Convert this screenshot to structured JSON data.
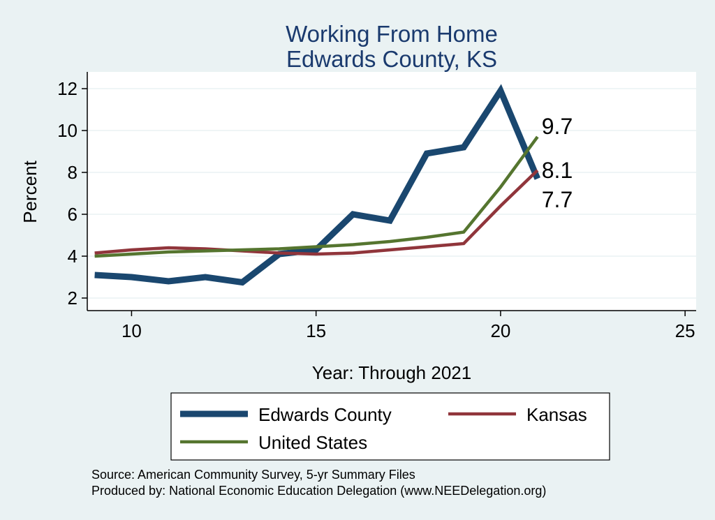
{
  "chart_data": {
    "type": "line",
    "title": [
      "Working From Home",
      "Edwards County, KS"
    ],
    "xlabel": "Year: Through 2021",
    "ylabel": "Percent",
    "xlim": [
      8.8,
      25.3
    ],
    "ylim": [
      1.4,
      12.8
    ],
    "xticks": [
      10,
      15,
      20,
      25
    ],
    "yticks": [
      2,
      4,
      6,
      8,
      10,
      12
    ],
    "grid": true,
    "series": [
      {
        "name": "Edwards County",
        "color": "#1a476f",
        "x": [
          9,
          10,
          11,
          12,
          13,
          14,
          15,
          16,
          17,
          18,
          19,
          20,
          21
        ],
        "values": [
          3.1,
          3.0,
          2.8,
          3.0,
          2.75,
          4.1,
          4.3,
          6.0,
          5.7,
          8.9,
          9.2,
          11.9,
          7.7
        ],
        "end_label": "7.7"
      },
      {
        "name": "Kansas",
        "color": "#90353b",
        "x": [
          9,
          10,
          11,
          12,
          13,
          14,
          15,
          16,
          17,
          18,
          19,
          20,
          21
        ],
        "values": [
          4.15,
          4.3,
          4.4,
          4.35,
          4.25,
          4.15,
          4.1,
          4.15,
          4.3,
          4.45,
          4.6,
          6.4,
          8.1
        ],
        "end_label": "8.1"
      },
      {
        "name": "United States",
        "color": "#55752f",
        "x": [
          9,
          10,
          11,
          12,
          13,
          14,
          15,
          16,
          17,
          18,
          19,
          20,
          21
        ],
        "values": [
          4.0,
          4.1,
          4.2,
          4.25,
          4.3,
          4.35,
          4.45,
          4.55,
          4.7,
          4.9,
          5.15,
          7.3,
          9.7
        ],
        "end_label": "9.7"
      }
    ],
    "legend": {
      "position": "bottom",
      "order": [
        "Edwards County",
        "Kansas",
        "United States"
      ]
    }
  },
  "source_lines": [
    "Source: American Community Survey, 5-yr Summary Files",
    "Produced by: National Economic Education Delegation (www.NEEDelegation.org)"
  ]
}
